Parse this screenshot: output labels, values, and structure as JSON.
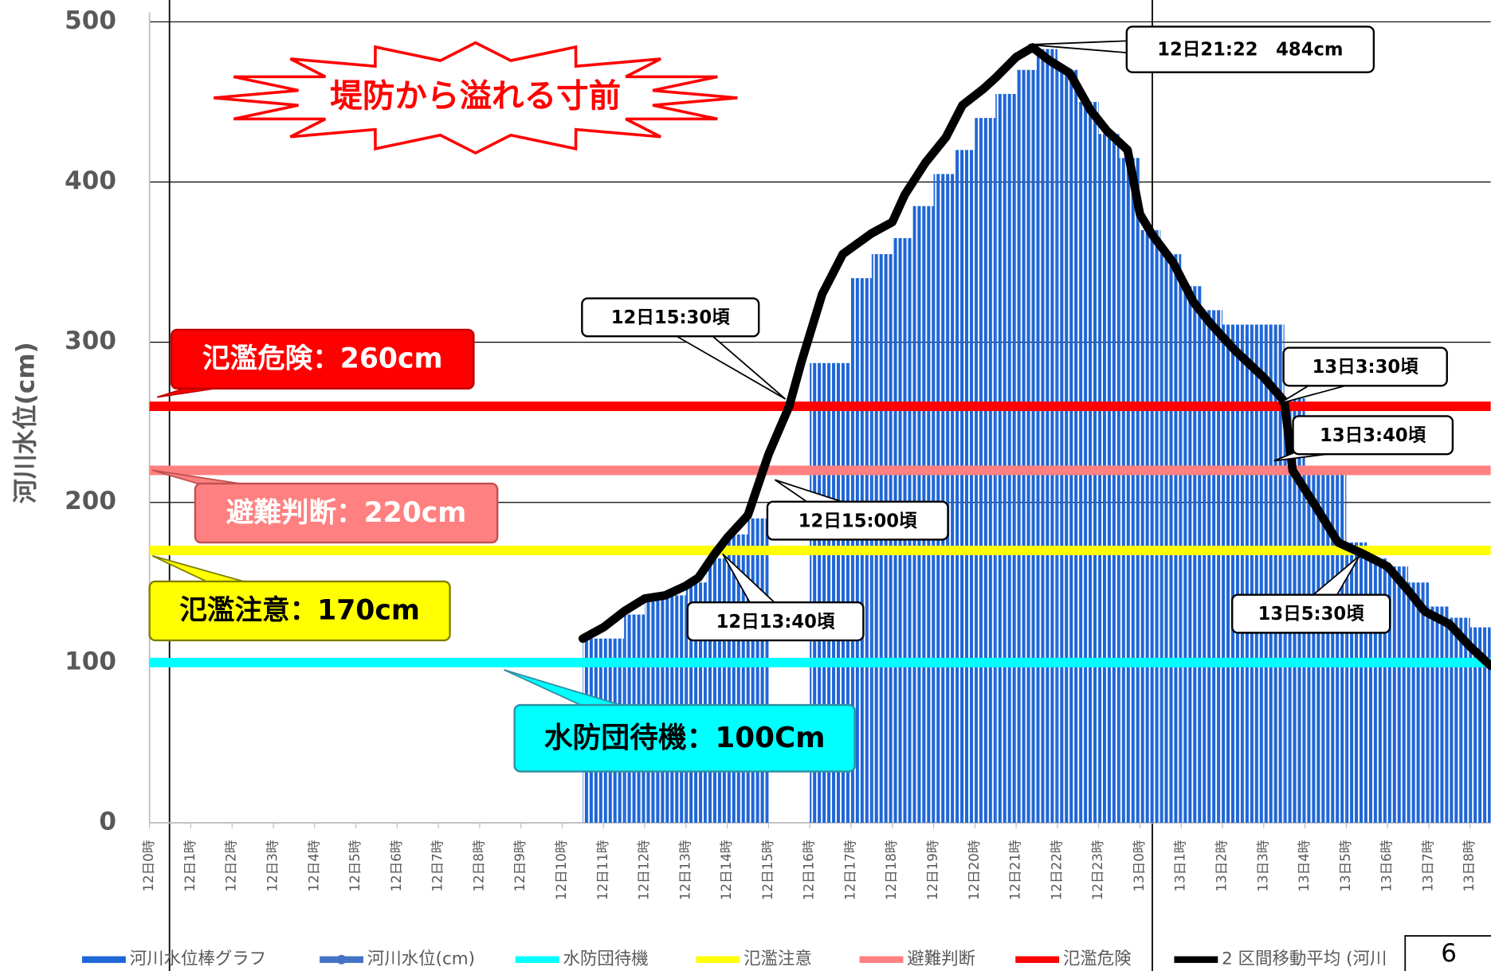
{
  "chart_data": {
    "type": "bar_line",
    "y_label": "河川水位(cm)",
    "ylim": [
      0,
      500
    ],
    "yticks": [
      0,
      100,
      200,
      300,
      400,
      500
    ],
    "grid": true,
    "xlim": [
      0,
      32.5
    ],
    "categories": [
      "12日0時",
      "12日1時",
      "12日2時",
      "12日3時",
      "12日4時",
      "12日5時",
      "12日6時",
      "12日7時",
      "12日8時",
      "12日9時",
      "12日10時",
      "12日11時",
      "12日12時",
      "12日13時",
      "12日14時",
      "12日15時",
      "12日16時",
      "12日17時",
      "12日18時",
      "12日19時",
      "12日20時",
      "12日21時",
      "12日22時",
      "12日23時",
      "13日0時",
      "13日1時",
      "13日2時",
      "13日3時",
      "13日4時",
      "13日5時",
      "13日6時",
      "13日7時",
      "13日8時"
    ],
    "series": [
      {
        "name": "河川水位棒グラフ",
        "kind": "bar",
        "color": "#1f66d6",
        "bin_width": 0.5,
        "x": [
          10.5,
          11,
          11.5,
          12,
          12.5,
          13,
          13.5,
          14,
          14.5,
          16,
          16.5,
          17,
          17.5,
          18,
          18.5,
          19,
          19.5,
          20,
          20.5,
          21,
          21.5,
          22,
          22.5,
          23,
          23.5,
          24,
          24.5,
          25,
          25.5,
          26,
          26.5,
          27,
          27.5,
          28,
          28.5,
          29,
          29.5,
          30,
          30.5,
          31,
          31.5,
          32
        ],
        "values": [
          115,
          115,
          130,
          140,
          142,
          150,
          165,
          180,
          190,
          287,
          287,
          340,
          355,
          365,
          385,
          405,
          420,
          440,
          455,
          470,
          483,
          470,
          450,
          430,
          415,
          370,
          355,
          335,
          320,
          311,
          311,
          311,
          265,
          217,
          217,
          175,
          165,
          160,
          150,
          135,
          128,
          122
        ]
      },
      {
        "name": "河川水位(cm)",
        "kind": "legend",
        "color": "#4472c4"
      },
      {
        "name": "2 区間移動平均 (河川",
        "kind": "line",
        "color": "#000000",
        "x": [
          10.5,
          11,
          11.5,
          12,
          12.5,
          13,
          13.3,
          13.7,
          14,
          14.5,
          15,
          15.5,
          15.8,
          16.3,
          16.8,
          17.5,
          18,
          18.3,
          18.8,
          19.3,
          19.7,
          20.2,
          20.5,
          21,
          21.4,
          21.8,
          22.3,
          22.8,
          23.2,
          23.7,
          24,
          24.3,
          24.8,
          25.3,
          25.7,
          26.3,
          27,
          27.5,
          27.7,
          28.2,
          28.8,
          29.4,
          30,
          30.5,
          30.9,
          31.5,
          32,
          32.5
        ],
        "values": [
          115,
          122,
          132,
          140,
          142,
          148,
          153,
          168,
          178,
          192,
          230,
          260,
          288,
          330,
          355,
          368,
          375,
          392,
          412,
          428,
          448,
          458,
          465,
          478,
          484,
          476,
          468,
          445,
          432,
          420,
          380,
          367,
          350,
          325,
          312,
          295,
          278,
          263,
          220,
          200,
          175,
          168,
          160,
          145,
          132,
          124,
          110,
          98
        ]
      }
    ],
    "thresholds": [
      {
        "name": "水防団待機",
        "color": "#00ffff",
        "value": 100,
        "label": "水防団待機：100Cm",
        "text_color": "#000000"
      },
      {
        "name": "氾濫注意",
        "color": "#ffff00",
        "value": 170,
        "label": "氾濫注意：170cm",
        "text_color": "#000000"
      },
      {
        "name": "避難判断",
        "color": "#ff8080",
        "value": 220,
        "label": "避難判断：220cm",
        "text_color": "#ffffff"
      },
      {
        "name": "氾濫危険",
        "color": "#ff0000",
        "value": 260,
        "label": "氾濫危険：260cm",
        "text_color": "#ffffff"
      }
    ],
    "annotations": [
      "12日21:22　484cm",
      "12日15:30頃",
      "13日3:30頃",
      "13日3:40頃",
      "12日15:00頃",
      "12日13:40頃",
      "13日5:30頃"
    ],
    "headline": "堤防から溢れる寸前",
    "page_number": "6"
  }
}
